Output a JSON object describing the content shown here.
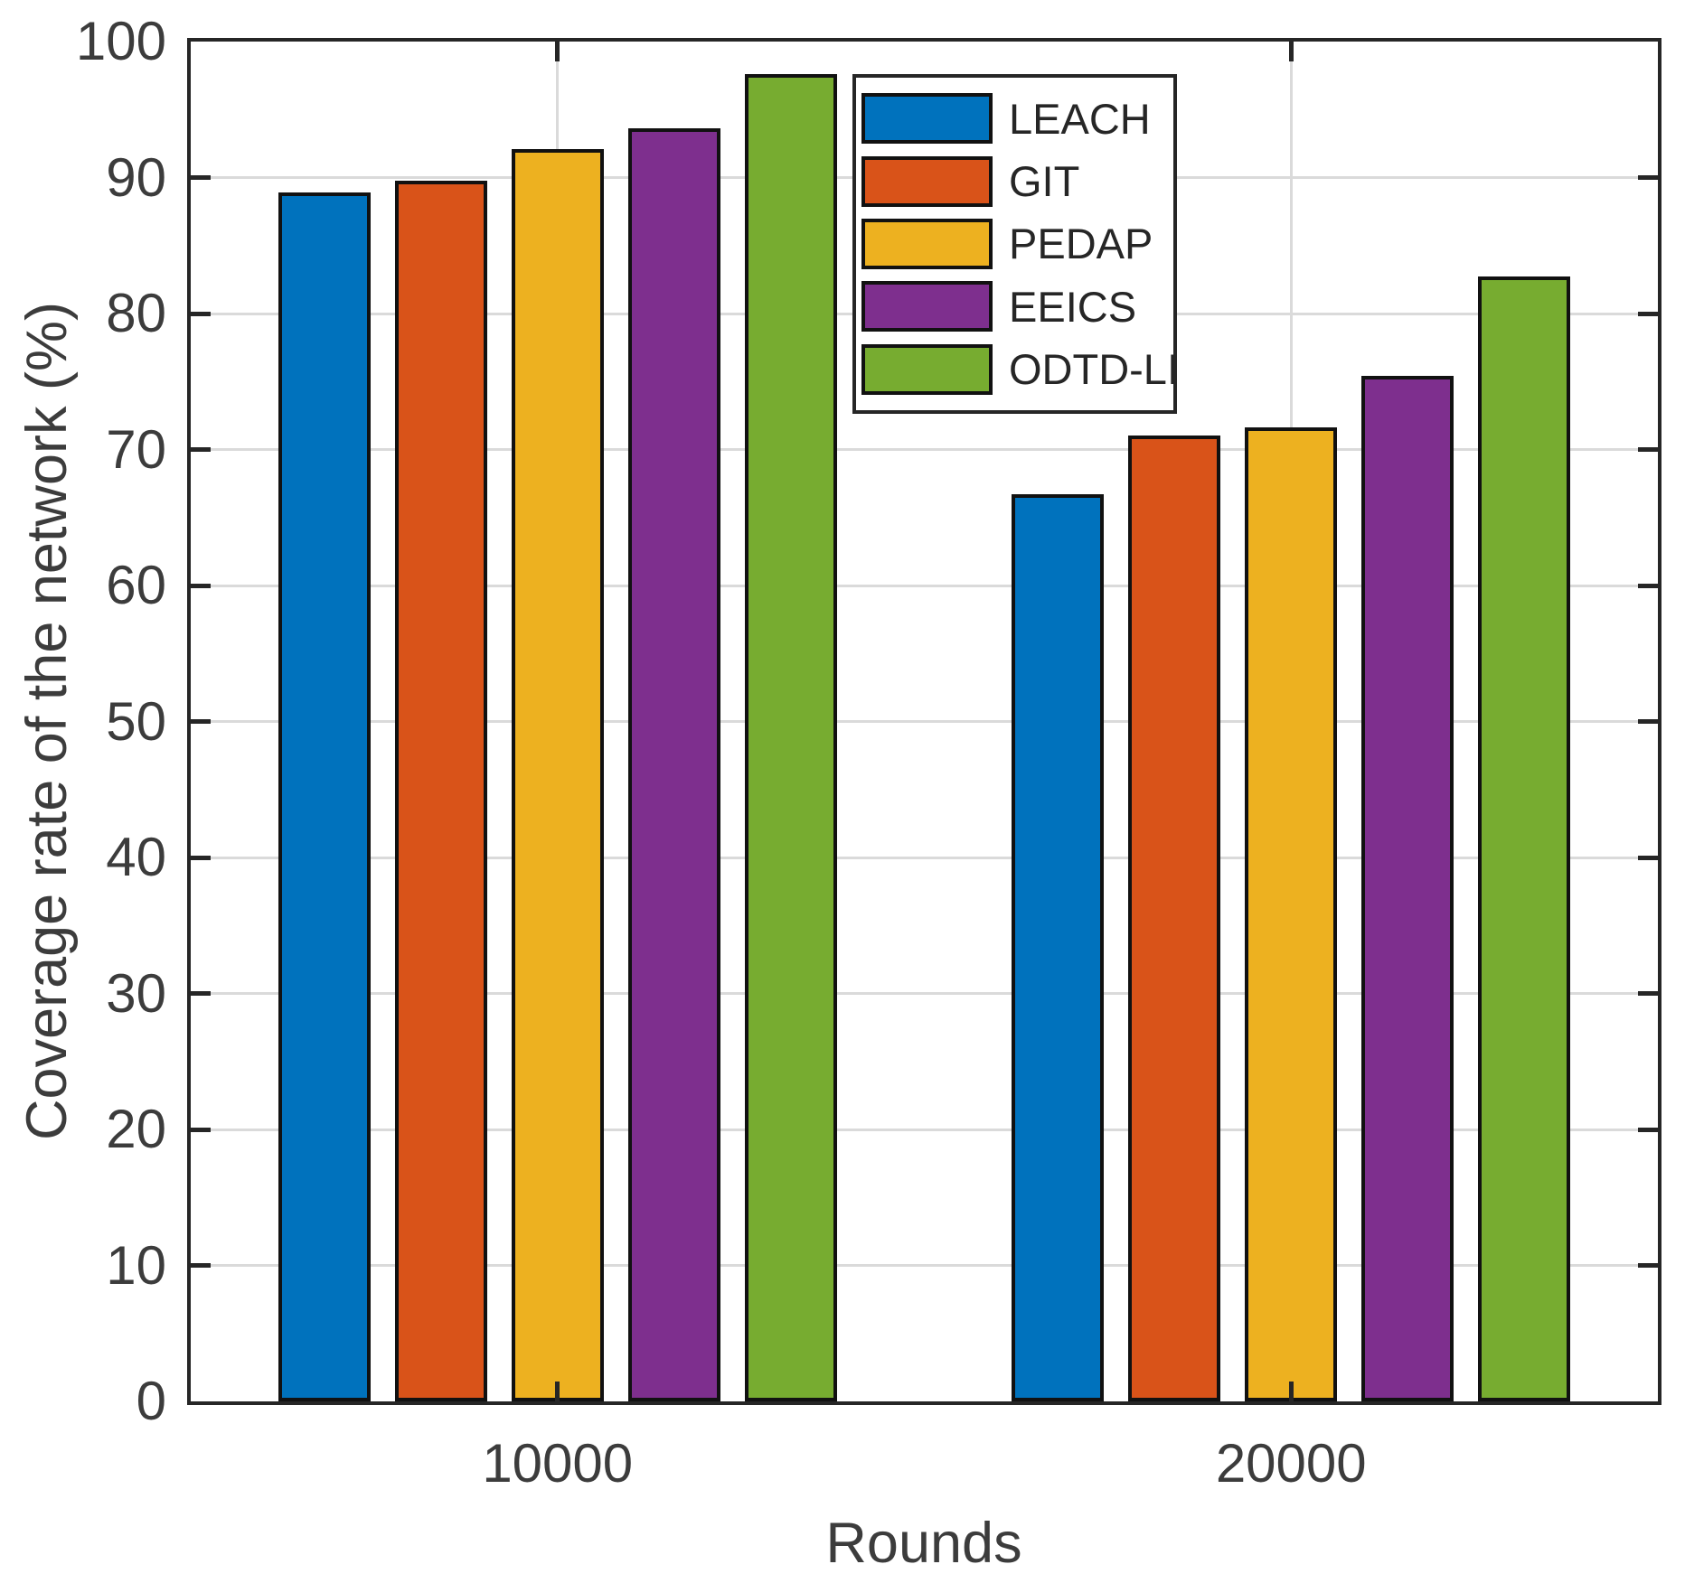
{
  "chart_data": {
    "type": "bar",
    "title": "",
    "categories": [
      "10000",
      "20000"
    ],
    "series": [
      {
        "name": "LEACH",
        "color": "#0072BD",
        "values": [
          88.9,
          66.7
        ]
      },
      {
        "name": "GIT",
        "color": "#D95319",
        "values": [
          89.8,
          71.0
        ]
      },
      {
        "name": "PEDAP",
        "color": "#EDB120",
        "values": [
          92.1,
          71.6
        ]
      },
      {
        "name": "EEICS",
        "color": "#7E2F8E",
        "values": [
          93.6,
          75.4
        ]
      },
      {
        "name": "ODTD-LI",
        "color": "#77AC30",
        "values": [
          97.6,
          82.7
        ]
      }
    ],
    "xlabel": "Rounds",
    "ylabel": "Coverage rate of the network (%)",
    "ylim": [
      0,
      100
    ],
    "yticks": [
      0,
      10,
      20,
      30,
      40,
      50,
      60,
      70,
      80,
      90,
      100
    ],
    "grid": true,
    "legend_position": "upper-right-inside",
    "styles": {
      "background": "#ffffff",
      "axis_color": "#262626",
      "grid_color": "#dadada",
      "bar_edge_color": "#111111",
      "tick_label_color": "#3c3c3c"
    }
  }
}
